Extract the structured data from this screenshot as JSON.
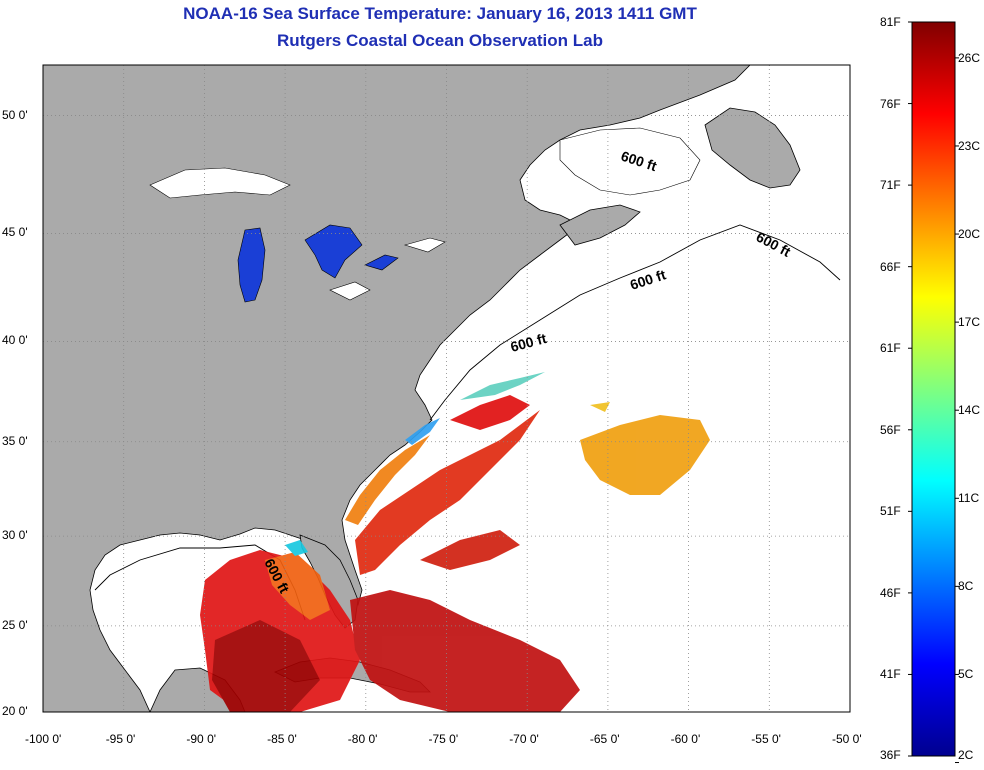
{
  "title": "NOAA-16 Sea Surface Temperature:  January 16, 2013 1411 GMT",
  "subtitle": "Rutgers Coastal Ocean Observation Lab",
  "axes": {
    "lon_ticks": [
      "-100 0'",
      "-95 0'",
      "-90 0'",
      "-85 0'",
      "-80 0'",
      "-75 0'",
      "-70 0'",
      "-65 0'",
      "-60 0'",
      "-55 0'",
      "-50 0'"
    ],
    "lat_ticks": [
      "20 0'",
      "25 0'",
      "30 0'",
      "35 0'",
      "40 0'",
      "45 0'",
      "50 0'"
    ]
  },
  "map": {
    "lon_range": [
      -100,
      -50
    ],
    "lat_range": [
      20,
      52
    ],
    "grid": true,
    "contour_label": "600 ft",
    "colors": {
      "land": "#aaaaaa",
      "ocean": "#ffffff",
      "lakes_cold": "#1a3fd6",
      "grid": "#888888"
    }
  },
  "colorbar": {
    "fahrenheit_labels": [
      "81F",
      "76F",
      "71F",
      "66F",
      "61F",
      "56F",
      "51F",
      "46F",
      "41F",
      "36F"
    ],
    "celsius_labels": [
      "26C",
      "23C",
      "20C",
      "17C",
      "14C",
      "11C",
      "8C",
      "5C",
      "2C"
    ],
    "range_f": [
      36,
      81
    ],
    "colormap": "jet"
  }
}
